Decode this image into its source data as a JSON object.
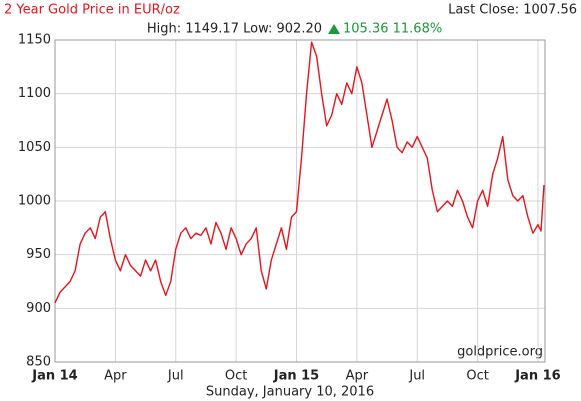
{
  "chart_data": {
    "type": "line",
    "title": "2 Year Gold Price in EUR/oz",
    "last_close": "Last Close: 1007.56",
    "high_low": "High: 1149.17 Low: 902.20",
    "change": "105.36 11.68%",
    "watermark": "goldprice.org",
    "date": "Sunday, January 10, 2016",
    "grid": true,
    "xlim": [
      0,
      24.35
    ],
    "xticks": [
      {
        "value": 0,
        "label": "Jan 14"
      },
      {
        "value": 3,
        "label": "Apr"
      },
      {
        "value": 6,
        "label": "Jul"
      },
      {
        "value": 9,
        "label": "Oct"
      },
      {
        "value": 12,
        "label": "Jan 15"
      },
      {
        "value": 15,
        "label": "Apr"
      },
      {
        "value": 18,
        "label": "Jul"
      },
      {
        "value": 21,
        "label": "Oct"
      },
      {
        "value": 24,
        "label": "Jan 16"
      }
    ],
    "ylim": [
      850,
      1150
    ],
    "yticks": [
      850,
      900,
      950,
      1000,
      1050,
      1100,
      1150
    ],
    "x": [
      0,
      0.25,
      0.5,
      0.75,
      1.0,
      1.25,
      1.5,
      1.75,
      2.0,
      2.25,
      2.5,
      2.75,
      3.0,
      3.25,
      3.5,
      3.75,
      4.0,
      4.25,
      4.5,
      4.75,
      5.0,
      5.25,
      5.5,
      5.75,
      6.0,
      6.25,
      6.5,
      6.75,
      7.0,
      7.25,
      7.5,
      7.75,
      8.0,
      8.25,
      8.5,
      8.75,
      9.0,
      9.25,
      9.5,
      9.75,
      10.0,
      10.25,
      10.5,
      10.75,
      11.0,
      11.25,
      11.5,
      11.75,
      12.0,
      12.25,
      12.5,
      12.75,
      13.0,
      13.25,
      13.5,
      13.75,
      14.0,
      14.25,
      14.5,
      14.75,
      15.0,
      15.25,
      15.5,
      15.75,
      16.0,
      16.25,
      16.5,
      16.75,
      17.0,
      17.25,
      17.5,
      17.75,
      18.0,
      18.25,
      18.5,
      18.75,
      19.0,
      19.25,
      19.5,
      19.75,
      20.0,
      20.25,
      20.5,
      20.75,
      21.0,
      21.25,
      21.5,
      21.75,
      22.0,
      22.25,
      22.5,
      22.75,
      23.0,
      23.25,
      23.5,
      23.75,
      24.0,
      24.15,
      24.3
    ],
    "series": [
      {
        "name": "Gold Price EUR/oz",
        "color": "#e8141b",
        "values": [
          905,
          915,
          920,
          925,
          935,
          960,
          970,
          975,
          965,
          985,
          990,
          965,
          945,
          935,
          950,
          940,
          935,
          930,
          945,
          935,
          945,
          925,
          912,
          925,
          955,
          970,
          975,
          965,
          970,
          968,
          975,
          960,
          980,
          970,
          955,
          975,
          965,
          950,
          960,
          965,
          975,
          935,
          918,
          945,
          960,
          975,
          955,
          985,
          990,
          1040,
          1100,
          1148,
          1135,
          1100,
          1070,
          1080,
          1100,
          1090,
          1110,
          1100,
          1125,
          1110,
          1080,
          1050,
          1065,
          1080,
          1095,
          1075,
          1050,
          1045,
          1055,
          1050,
          1060,
          1050,
          1040,
          1010,
          990,
          995,
          1000,
          995,
          1010,
          1000,
          985,
          975,
          1000,
          1010,
          995,
          1025,
          1040,
          1060,
          1020,
          1005,
          1000,
          1005,
          985,
          970,
          978,
          972,
          1015
        ]
      }
    ]
  }
}
